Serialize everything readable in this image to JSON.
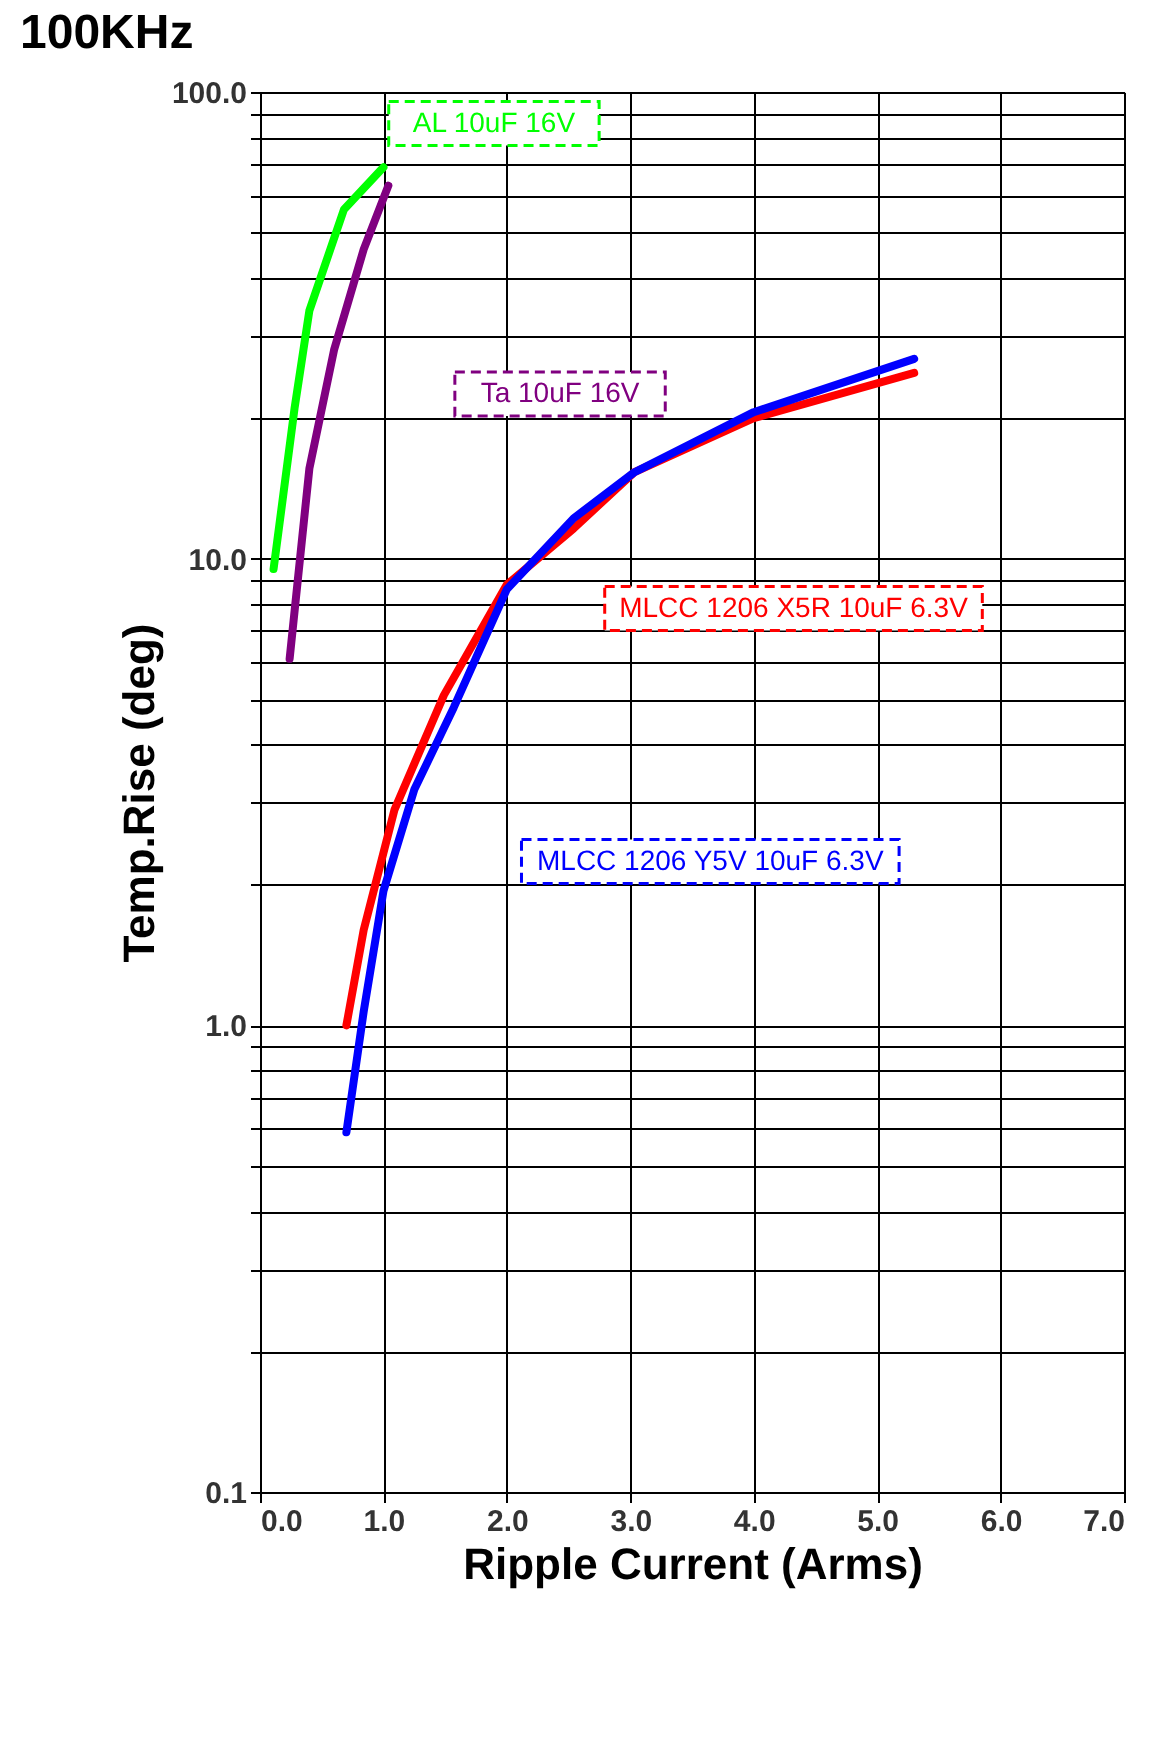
{
  "chart_data": {
    "type": "line",
    "title": "100KHz",
    "xlabel": "Ripple Current (Arms)",
    "ylabel": "Temp.Rise (deg)",
    "log": "y",
    "grid": true,
    "marker": "none",
    "line_style": "solid",
    "xlim": [
      0,
      7
    ],
    "xticks": [
      {
        "value": 0,
        "label": "0.0"
      },
      {
        "value": 1,
        "label": "1.0"
      },
      {
        "value": 2,
        "label": "2.0"
      },
      {
        "value": 3,
        "label": "3.0"
      },
      {
        "value": 4,
        "label": "4.0"
      },
      {
        "value": 5,
        "label": "5.0"
      },
      {
        "value": 6,
        "label": "6.0"
      },
      {
        "value": 7,
        "label": "7.0"
      }
    ],
    "ylim": [
      0.1,
      100
    ],
    "yticks": [
      0.1,
      {
        "value": 0.2,
        "label": null
      },
      {
        "value": 0.3,
        "label": null
      },
      {
        "value": 0.4,
        "label": null
      },
      {
        "value": 0.5,
        "label": null
      },
      {
        "value": 0.6,
        "label": null
      },
      {
        "value": 0.7,
        "label": null
      },
      {
        "value": 0.8,
        "label": null
      },
      {
        "value": 0.9,
        "label": null
      },
      {
        "value": 1,
        "label": "1.0"
      },
      {
        "value": 2,
        "label": null
      },
      {
        "value": 3,
        "label": null
      },
      {
        "value": 4,
        "label": null
      },
      {
        "value": 5,
        "label": null
      },
      {
        "value": 6,
        "label": null
      },
      {
        "value": 7,
        "label": null
      },
      {
        "value": 8,
        "label": null
      },
      {
        "value": 9,
        "label": null
      },
      {
        "value": 10,
        "label": "10.0"
      },
      {
        "value": 20,
        "label": null
      },
      {
        "value": 30,
        "label": null
      },
      {
        "value": 40,
        "label": null
      },
      {
        "value": 50,
        "label": null
      },
      {
        "value": 60,
        "label": null
      },
      {
        "value": 70,
        "label": null
      },
      {
        "value": 80,
        "label": null
      },
      {
        "value": 90,
        "label": null
      },
      {
        "value": 100,
        "label": "100.0"
      }
    ],
    "series": [
      {
        "name": "AL  10uF 16V",
        "color": "#00ff00",
        "x": [
          0.11,
          0.28,
          0.4,
          0.68,
          1.0
        ],
        "values": [
          9.5,
          21,
          34,
          56,
          69
        ]
      },
      {
        "name": "Ta  10uF 16V",
        "color": "#800080",
        "x": [
          0.24,
          0.4,
          0.6,
          0.84,
          1.04
        ],
        "values": [
          6.1,
          15.6,
          28,
          46,
          63
        ]
      },
      {
        "name": "MLCC 1206 X5R 10uF 6.3V",
        "color": "#ff0000",
        "x": [
          0.7,
          0.84,
          1.09,
          1.49,
          2.0,
          2.54,
          3.03,
          4.0,
          5.3
        ],
        "values": [
          1.0,
          1.6,
          2.9,
          5.1,
          8.8,
          11.6,
          15.3,
          20,
          25
        ]
      },
      {
        "name": "MLCC 1206 Y5V 10uF 6.3V",
        "color": "#0000ff",
        "x": [
          0.7,
          0.84,
          1.0,
          1.25,
          1.57,
          2.0,
          2.54,
          3.03,
          4.0,
          5.3
        ],
        "values": [
          0.59,
          1.07,
          1.94,
          3.2,
          4.8,
          8.6,
          12.2,
          15.3,
          20.6,
          26.8
        ]
      }
    ]
  }
}
